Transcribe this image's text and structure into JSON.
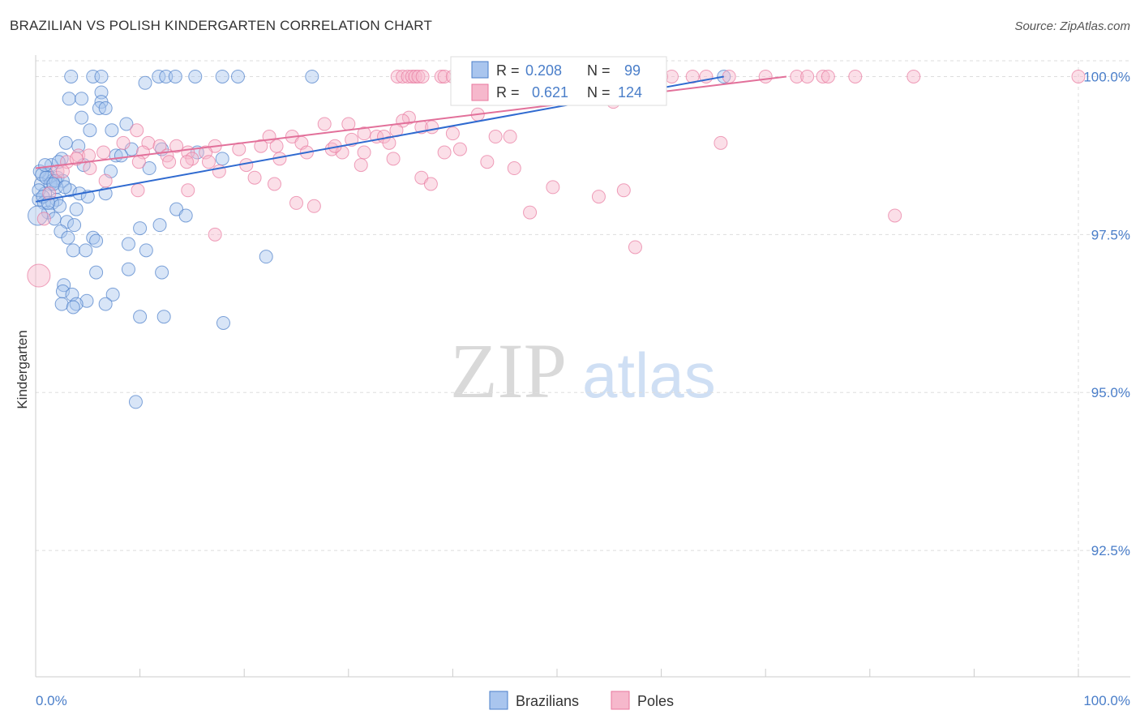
{
  "header": {
    "title": "BRAZILIAN VS POLISH KINDERGARTEN CORRELATION CHART",
    "source": "Source: ZipAtlas.com"
  },
  "colors": {
    "blue": "#4a7ec9",
    "blue_fill": "#a9c5ee",
    "blue_line": "#2f6ad0",
    "pink": "#e8779e",
    "pink_fill": "#f6b8cc",
    "pink_line": "#e2709a",
    "grid": "#dddddd"
  },
  "watermark": {
    "zip": "ZIP",
    "atlas": "atlas"
  },
  "chart_data": {
    "type": "scatter",
    "title": "BRAZILIAN VS POLISH KINDERGARTEN CORRELATION CHART",
    "xlabel": "",
    "ylabel": "Kindergarten",
    "xlim": [
      0,
      100
    ],
    "ylim": [
      90.5,
      100.25
    ],
    "x_tick_labels": {
      "left": "0.0%",
      "right": "100.0%"
    },
    "y_ticks": [
      {
        "value": 100.0,
        "label": "100.0%"
      },
      {
        "value": 97.5,
        "label": "97.5%"
      },
      {
        "value": 95.0,
        "label": "95.0%"
      },
      {
        "value": 92.5,
        "label": "92.5%"
      }
    ],
    "grid": true,
    "legend": {
      "position": "top-center",
      "entries": [
        {
          "series": "Brazilians",
          "r_label": "R =",
          "r": "0.208",
          "n_label": "N =",
          "n": "99"
        },
        {
          "series": "Poles",
          "r_label": "R =",
          "r": "0.621",
          "n_label": "N =",
          "n": "124"
        }
      ]
    },
    "series": [
      {
        "name": "Brazilians",
        "color": "#4a7ec9",
        "trend": {
          "x": [
            0,
            66
          ],
          "y": [
            98.02,
            100.0
          ]
        },
        "points": [
          [
            3.4,
            100
          ],
          [
            5.5,
            100
          ],
          [
            6.3,
            100
          ],
          [
            11.8,
            100
          ],
          [
            12.5,
            100
          ],
          [
            13.4,
            100
          ],
          [
            15.3,
            100
          ],
          [
            17.9,
            100
          ],
          [
            19.4,
            100
          ],
          [
            26.5,
            100
          ],
          [
            66,
            100
          ],
          [
            10.5,
            99.9
          ],
          [
            6.3,
            99.75
          ],
          [
            3.2,
            99.65
          ],
          [
            4.4,
            99.65
          ],
          [
            6.3,
            99.6
          ],
          [
            6.1,
            99.5
          ],
          [
            6.7,
            99.5
          ],
          [
            4.4,
            99.35
          ],
          [
            8.7,
            99.25
          ],
          [
            5.2,
            99.15
          ],
          [
            7.3,
            99.15
          ],
          [
            2.9,
            98.95
          ],
          [
            4.1,
            98.9
          ],
          [
            9.2,
            98.85
          ],
          [
            12.1,
            98.85
          ],
          [
            15.5,
            98.8
          ],
          [
            7.7,
            98.75
          ],
          [
            8.2,
            98.75
          ],
          [
            2.5,
            98.7
          ],
          [
            17.9,
            98.7
          ],
          [
            1.5,
            98.6
          ],
          [
            4.6,
            98.6
          ],
          [
            10.9,
            98.55
          ],
          [
            7.2,
            98.5
          ],
          [
            1.1,
            98.45
          ],
          [
            1.3,
            98.4
          ],
          [
            2.1,
            98.4
          ],
          [
            1.6,
            98.35
          ],
          [
            2.6,
            98.35
          ],
          [
            0.5,
            98.3
          ],
          [
            1.4,
            98.3
          ],
          [
            2.0,
            98.25
          ],
          [
            3.3,
            98.2
          ],
          [
            0.9,
            98.15
          ],
          [
            4.2,
            98.15
          ],
          [
            6.7,
            98.15
          ],
          [
            5.0,
            98.1
          ],
          [
            0.3,
            98.05
          ],
          [
            2.0,
            98.05
          ],
          [
            0.8,
            98.0
          ],
          [
            1.6,
            98.0
          ],
          [
            2.3,
            97.95
          ],
          [
            3.9,
            97.9
          ],
          [
            13.5,
            97.9
          ],
          [
            1.2,
            97.85
          ],
          [
            14.4,
            97.8
          ],
          [
            1.8,
            97.75
          ],
          [
            3.0,
            97.7
          ],
          [
            3.7,
            97.65
          ],
          [
            10.0,
            97.6
          ],
          [
            11.9,
            97.65
          ],
          [
            2.4,
            97.55
          ],
          [
            3.1,
            97.45
          ],
          [
            5.5,
            97.45
          ],
          [
            5.8,
            97.4
          ],
          [
            8.9,
            97.35
          ],
          [
            3.6,
            97.25
          ],
          [
            4.8,
            97.25
          ],
          [
            10.6,
            97.25
          ],
          [
            22.1,
            97.15
          ],
          [
            8.9,
            96.95
          ],
          [
            5.8,
            96.9
          ],
          [
            12.1,
            96.9
          ],
          [
            2.7,
            96.7
          ],
          [
            2.6,
            96.6
          ],
          [
            3.5,
            96.55
          ],
          [
            7.4,
            96.55
          ],
          [
            4.9,
            96.45
          ],
          [
            2.5,
            96.4
          ],
          [
            3.9,
            96.4
          ],
          [
            6.7,
            96.4
          ],
          [
            3.6,
            96.35
          ],
          [
            10.0,
            96.2
          ],
          [
            12.3,
            96.2
          ],
          [
            18.0,
            96.1
          ],
          [
            9.6,
            94.85
          ],
          [
            0.4,
            98.5
          ],
          [
            0.6,
            98.45
          ],
          [
            1.0,
            98.4
          ],
          [
            1.9,
            98.35
          ],
          [
            0.3,
            98.2
          ],
          [
            1.7,
            98.3
          ],
          [
            0.7,
            98.1
          ],
          [
            2.8,
            98.25
          ],
          [
            1.2,
            98.0
          ],
          [
            0.2,
            97.8
          ],
          [
            0.9,
            98.6
          ],
          [
            2.2,
            98.65
          ]
        ]
      },
      {
        "name": "Poles",
        "color": "#e8779e",
        "trend": {
          "x": [
            0,
            72
          ],
          "y": [
            98.55,
            100.0
          ]
        },
        "points": [
          [
            34.7,
            100
          ],
          [
            35.2,
            100
          ],
          [
            35.7,
            100
          ],
          [
            36.1,
            100
          ],
          [
            36.4,
            100
          ],
          [
            36.7,
            100
          ],
          [
            37.1,
            100
          ],
          [
            38.9,
            100
          ],
          [
            39.2,
            100
          ],
          [
            40.0,
            100
          ],
          [
            42.0,
            100
          ],
          [
            43.2,
            100
          ],
          [
            44.0,
            100
          ],
          [
            45.0,
            100
          ],
          [
            46.0,
            100
          ],
          [
            47.0,
            100
          ],
          [
            48.1,
            100
          ],
          [
            49.2,
            100
          ],
          [
            50.0,
            100
          ],
          [
            51.3,
            100
          ],
          [
            52.5,
            100
          ],
          [
            53.6,
            100
          ],
          [
            55.0,
            100
          ],
          [
            56.3,
            100
          ],
          [
            58.0,
            100
          ],
          [
            59.0,
            100
          ],
          [
            60.0,
            100
          ],
          [
            61.0,
            100
          ],
          [
            63.0,
            100
          ],
          [
            64.3,
            100
          ],
          [
            66.5,
            100
          ],
          [
            70.0,
            100
          ],
          [
            73.0,
            100
          ],
          [
            74.0,
            100
          ],
          [
            75.5,
            100
          ],
          [
            76.0,
            100
          ],
          [
            78.6,
            100
          ],
          [
            84.2,
            100
          ],
          [
            100.0,
            100
          ],
          [
            41.4,
            99.9
          ],
          [
            44.5,
            99.75
          ],
          [
            52.0,
            99.75
          ],
          [
            56.5,
            99.7
          ],
          [
            58.5,
            99.7
          ],
          [
            55.4,
            99.6
          ],
          [
            42.4,
            99.4
          ],
          [
            35.8,
            99.35
          ],
          [
            35.2,
            99.3
          ],
          [
            27.7,
            99.25
          ],
          [
            30.0,
            99.25
          ],
          [
            37.0,
            99.2
          ],
          [
            38.0,
            99.2
          ],
          [
            34.6,
            99.15
          ],
          [
            31.5,
            99.1
          ],
          [
            40.0,
            99.1
          ],
          [
            9.7,
            99.15
          ],
          [
            22.4,
            99.05
          ],
          [
            24.6,
            99.05
          ],
          [
            32.7,
            99.05
          ],
          [
            33.4,
            99.05
          ],
          [
            44.1,
            99.05
          ],
          [
            45.5,
            99.05
          ],
          [
            30.3,
            99.0
          ],
          [
            25.5,
            98.95
          ],
          [
            8.4,
            98.95
          ],
          [
            10.8,
            98.95
          ],
          [
            11.9,
            98.9
          ],
          [
            13.5,
            98.9
          ],
          [
            17.2,
            98.9
          ],
          [
            21.6,
            98.9
          ],
          [
            23.1,
            98.9
          ],
          [
            19.5,
            98.85
          ],
          [
            40.7,
            98.85
          ],
          [
            28.4,
            98.85
          ],
          [
            6.5,
            98.8
          ],
          [
            10.3,
            98.8
          ],
          [
            14.6,
            98.8
          ],
          [
            16.3,
            98.8
          ],
          [
            26.0,
            98.8
          ],
          [
            29.4,
            98.8
          ],
          [
            31.5,
            98.8
          ],
          [
            39.2,
            98.8
          ],
          [
            4.1,
            98.75
          ],
          [
            5.1,
            98.75
          ],
          [
            12.6,
            98.75
          ],
          [
            15.0,
            98.7
          ],
          [
            23.4,
            98.7
          ],
          [
            34.3,
            98.7
          ],
          [
            3.0,
            98.65
          ],
          [
            9.9,
            98.65
          ],
          [
            12.8,
            98.65
          ],
          [
            14.5,
            98.65
          ],
          [
            16.6,
            98.65
          ],
          [
            20.2,
            98.6
          ],
          [
            31.2,
            98.6
          ],
          [
            5.2,
            98.55
          ],
          [
            2.1,
            98.5
          ],
          [
            17.6,
            98.5
          ],
          [
            21.0,
            98.4
          ],
          [
            37.0,
            98.4
          ],
          [
            6.7,
            98.35
          ],
          [
            22.9,
            98.3
          ],
          [
            37.9,
            98.3
          ],
          [
            9.8,
            98.2
          ],
          [
            14.6,
            98.2
          ],
          [
            25.0,
            98.0
          ],
          [
            26.7,
            97.95
          ],
          [
            17.2,
            97.5
          ],
          [
            47.4,
            97.85
          ],
          [
            57.5,
            97.3
          ],
          [
            82.4,
            97.8
          ],
          [
            28.7,
            98.9
          ],
          [
            33.9,
            98.95
          ],
          [
            43.3,
            98.65
          ],
          [
            45.9,
            98.55
          ],
          [
            49.6,
            98.25
          ],
          [
            54.0,
            98.1
          ],
          [
            56.4,
            98.2
          ],
          [
            65.7,
            98.95
          ],
          [
            0.3,
            96.85
          ],
          [
            0.8,
            97.75
          ],
          [
            1.3,
            98.15
          ],
          [
            2.6,
            98.5
          ],
          [
            3.9,
            98.7
          ]
        ]
      }
    ]
  },
  "bottom_legend": {
    "items": [
      {
        "label": "Brazilians"
      },
      {
        "label": "Poles"
      }
    ]
  }
}
